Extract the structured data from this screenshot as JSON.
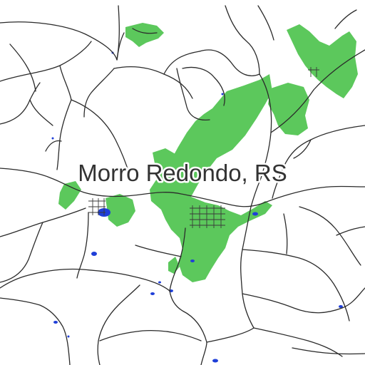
{
  "map": {
    "place_label": "Morro Redondo, RS",
    "colors": {
      "background": "#ffffff",
      "roads": "#2a2a2a",
      "vegetation": "#5cc85c",
      "water": "#1f3fd8"
    }
  }
}
